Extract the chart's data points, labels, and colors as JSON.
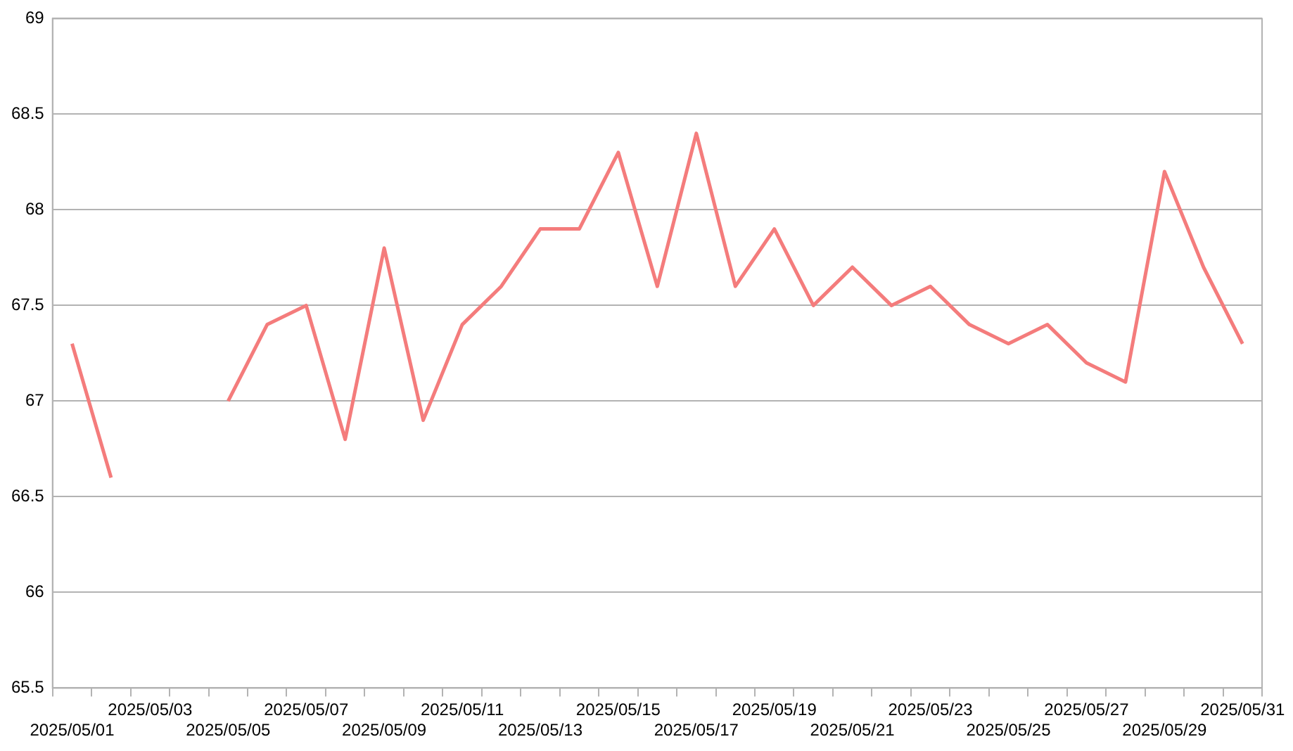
{
  "chart_data": {
    "type": "line",
    "categories": [
      "2025/05/01",
      null,
      "2025/05/03",
      null,
      "2025/05/05",
      null,
      "2025/05/07",
      null,
      "2025/05/09",
      null,
      "2025/05/11",
      null,
      "2025/05/13",
      null,
      "2025/05/15",
      null,
      "2025/05/17",
      null,
      "2025/05/19",
      null,
      "2025/05/21",
      null,
      "2025/05/23",
      null,
      "2025/05/25",
      null,
      "2025/05/27",
      null,
      "2025/05/29",
      null,
      "2025/05/31"
    ],
    "series": [
      {
        "color": "#f47c7c",
        "values": [
          67.3,
          66.6,
          null,
          null,
          67.0,
          67.4,
          67.5,
          66.8,
          67.8,
          66.9,
          67.4,
          67.6,
          67.9,
          67.9,
          68.3,
          67.6,
          68.4,
          67.6,
          67.9,
          67.5,
          67.7,
          67.5,
          67.6,
          67.4,
          67.3,
          67.4,
          67.2,
          67.1,
          68.2,
          67.7,
          67.3
        ]
      }
    ],
    "ylim": [
      65.5,
      69
    ],
    "yticks": [
      65.5,
      66,
      66.5,
      67,
      67.5,
      68,
      68.5,
      69
    ],
    "grid": "y",
    "legend": false,
    "marker": "none",
    "line_style": "solid"
  }
}
